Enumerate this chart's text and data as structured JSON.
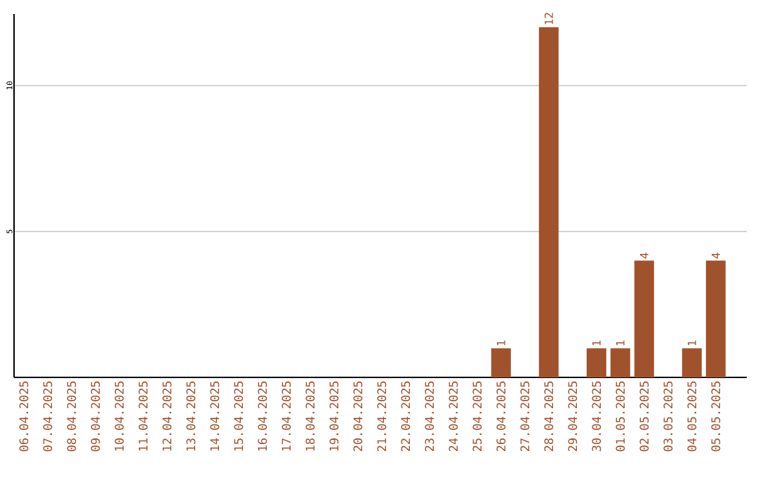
{
  "chart_data": {
    "type": "bar",
    "categories": [
      "06.04.2025",
      "07.04.2025",
      "08.04.2025",
      "09.04.2025",
      "10.04.2025",
      "11.04.2025",
      "12.04.2025",
      "13.04.2025",
      "14.04.2025",
      "15.04.2025",
      "16.04.2025",
      "17.04.2025",
      "18.04.2025",
      "19.04.2025",
      "20.04.2025",
      "21.04.2025",
      "22.04.2025",
      "23.04.2025",
      "24.04.2025",
      "25.04.2025",
      "26.04.2025",
      "27.04.2025",
      "28.04.2025",
      "29.04.2025",
      "30.04.2025",
      "01.05.2025",
      "02.05.2025",
      "03.05.2025",
      "04.05.2025",
      "05.05.2025"
    ],
    "values": [
      0,
      0,
      0,
      0,
      0,
      0,
      0,
      0,
      0,
      0,
      0,
      0,
      0,
      0,
      0,
      0,
      0,
      0,
      0,
      0,
      1,
      0,
      12,
      0,
      1,
      1,
      4,
      0,
      1,
      4
    ],
    "value_labels": [
      null,
      null,
      null,
      null,
      null,
      null,
      null,
      null,
      null,
      null,
      null,
      null,
      null,
      null,
      null,
      null,
      null,
      null,
      null,
      null,
      "1",
      null,
      "12",
      null,
      "1",
      "1",
      "4",
      null,
      "1",
      "4"
    ],
    "color": "#a0522d",
    "ylim": [
      0,
      12.45
    ],
    "yticks": [
      5,
      10
    ],
    "grid": "y"
  }
}
